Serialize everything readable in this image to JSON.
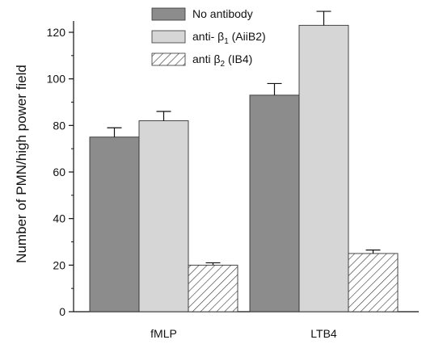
{
  "chart_data": {
    "type": "bar",
    "ylabel": "Number of PMN/high power field",
    "xlabel": "",
    "ylim": [
      0,
      130
    ],
    "yticks": [
      0,
      20,
      40,
      60,
      80,
      100,
      120
    ],
    "categories": [
      "fMLP",
      "LTB4"
    ],
    "legend_placement": "top-center",
    "grid": false,
    "series": [
      {
        "name": "No antibody",
        "values": [
          75,
          93
        ],
        "errors": [
          4,
          5
        ],
        "color": "#8c8c8c",
        "pattern": "solid"
      },
      {
        "name": "anti- β1 (AiiB2)",
        "name_main": "anti- β",
        "name_sub": "1",
        "name_tail": " (AiiB2)",
        "values": [
          82,
          123
        ],
        "errors": [
          4,
          6
        ],
        "color": "#d6d6d6",
        "pattern": "solid"
      },
      {
        "name": "anti β2 (IB4)",
        "name_main": "anti β",
        "name_sub": "2",
        "name_tail": " (IB4)",
        "values": [
          20,
          25
        ],
        "errors": [
          1,
          1.5
        ],
        "color": "#ffffff",
        "pattern": "hatch"
      }
    ]
  }
}
